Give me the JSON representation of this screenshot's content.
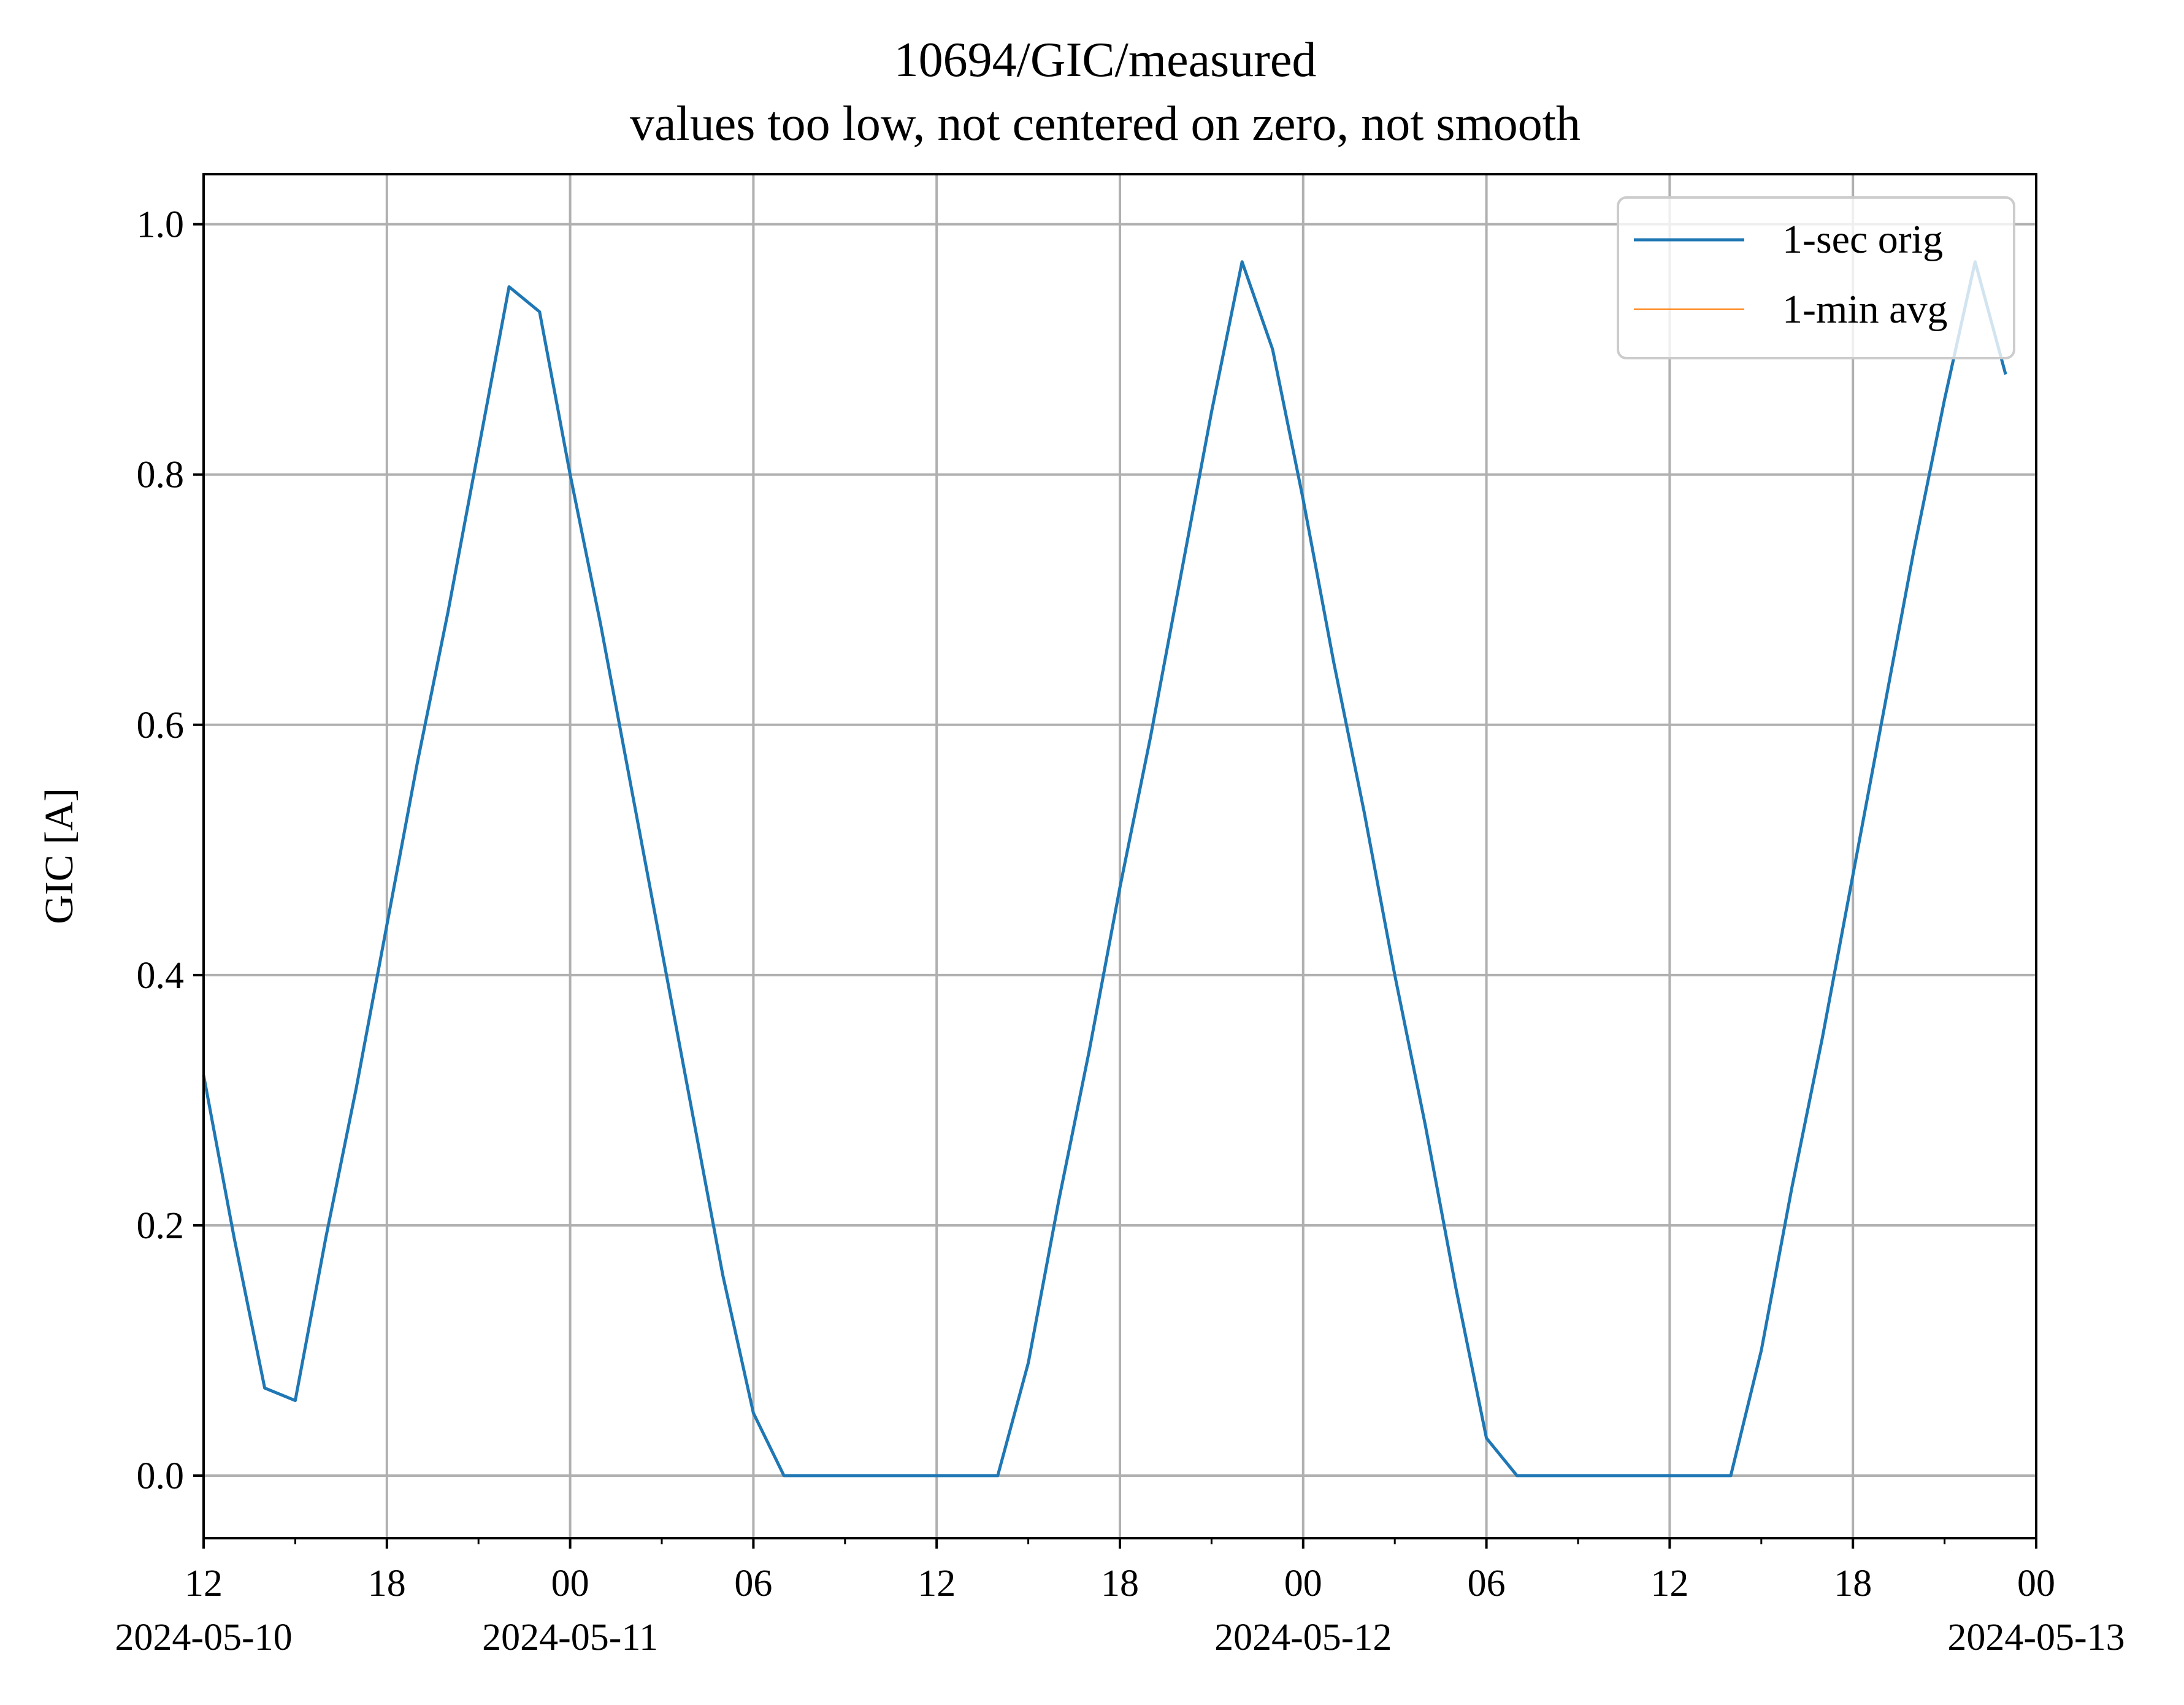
{
  "chart_data": {
    "type": "line",
    "title": "10694/GIC/measured",
    "subtitle": "values too low, not centered on zero, not smooth",
    "xlabel": "",
    "ylabel": "GIC [A]",
    "xlim": [
      "2024-05-10T12:00",
      "2024-05-13T00:00"
    ],
    "ylim": [
      -0.05,
      1.04
    ],
    "grid": true,
    "legend_position": "upper right",
    "x_ticks": [
      {
        "t": "2024-05-10T12:00",
        "label": "12",
        "date": "2024-05-10"
      },
      {
        "t": "2024-05-10T18:00",
        "label": "18",
        "date": ""
      },
      {
        "t": "2024-05-11T00:00",
        "label": "00",
        "date": "2024-05-11"
      },
      {
        "t": "2024-05-11T06:00",
        "label": "06",
        "date": ""
      },
      {
        "t": "2024-05-11T12:00",
        "label": "12",
        "date": ""
      },
      {
        "t": "2024-05-11T18:00",
        "label": "18",
        "date": ""
      },
      {
        "t": "2024-05-12T00:00",
        "label": "00",
        "date": "2024-05-12"
      },
      {
        "t": "2024-05-12T06:00",
        "label": "06",
        "date": ""
      },
      {
        "t": "2024-05-12T12:00",
        "label": "12",
        "date": ""
      },
      {
        "t": "2024-05-12T18:00",
        "label": "18",
        "date": ""
      },
      {
        "t": "2024-05-13T00:00",
        "label": "00",
        "date": "2024-05-13"
      }
    ],
    "minor_x_ticks": [
      "2024-05-10T15:00",
      "2024-05-10T21:00",
      "2024-05-11T03:00",
      "2024-05-11T09:00",
      "2024-05-11T15:00",
      "2024-05-11T21:00",
      "2024-05-12T03:00",
      "2024-05-12T09:00",
      "2024-05-12T15:00",
      "2024-05-12T21:00"
    ],
    "y_ticks": [
      {
        "v": 0.0,
        "label": "0.0"
      },
      {
        "v": 0.2,
        "label": "0.2"
      },
      {
        "v": 0.4,
        "label": "0.4"
      },
      {
        "v": 0.6,
        "label": "0.6"
      },
      {
        "v": 0.8,
        "label": "0.8"
      },
      {
        "v": 1.0,
        "label": "1.0"
      }
    ],
    "series": [
      {
        "name": "1-sec orig",
        "color": "#1f77b4",
        "x": [
          "2024-05-10T12:00",
          "2024-05-10T13:00",
          "2024-05-10T14:00",
          "2024-05-10T15:00",
          "2024-05-10T16:00",
          "2024-05-10T17:00",
          "2024-05-10T18:00",
          "2024-05-10T19:00",
          "2024-05-10T20:00",
          "2024-05-10T21:00",
          "2024-05-10T22:00",
          "2024-05-10T23:00",
          "2024-05-11T00:00",
          "2024-05-11T01:00",
          "2024-05-11T02:00",
          "2024-05-11T03:00",
          "2024-05-11T04:00",
          "2024-05-11T05:00",
          "2024-05-11T06:00",
          "2024-05-11T07:00",
          "2024-05-11T08:00",
          "2024-05-11T09:00",
          "2024-05-11T10:00",
          "2024-05-11T11:00",
          "2024-05-11T12:00",
          "2024-05-11T13:00",
          "2024-05-11T14:00",
          "2024-05-11T15:00",
          "2024-05-11T16:00",
          "2024-05-11T17:00",
          "2024-05-11T18:00",
          "2024-05-11T19:00",
          "2024-05-11T20:00",
          "2024-05-11T21:00",
          "2024-05-11T22:00",
          "2024-05-11T23:00",
          "2024-05-12T00:00",
          "2024-05-12T01:00",
          "2024-05-12T02:00",
          "2024-05-12T03:00",
          "2024-05-12T04:00",
          "2024-05-12T05:00",
          "2024-05-12T06:00",
          "2024-05-12T07:00",
          "2024-05-12T08:00",
          "2024-05-12T09:00",
          "2024-05-12T10:00",
          "2024-05-12T11:00",
          "2024-05-12T12:00",
          "2024-05-12T13:00",
          "2024-05-12T14:00",
          "2024-05-12T15:00",
          "2024-05-12T16:00",
          "2024-05-12T17:00",
          "2024-05-12T18:00",
          "2024-05-12T19:00",
          "2024-05-12T20:00",
          "2024-05-12T21:00",
          "2024-05-12T22:00",
          "2024-05-12T23:00"
        ],
        "values": [
          0.32,
          0.19,
          0.07,
          0.06,
          0.19,
          0.31,
          0.44,
          0.57,
          0.69,
          0.82,
          0.95,
          0.93,
          0.8,
          0.68,
          0.55,
          0.42,
          0.29,
          0.16,
          0.05,
          0.0,
          0.0,
          0.0,
          0.0,
          0.0,
          0.0,
          0.0,
          0.0,
          0.09,
          0.22,
          0.34,
          0.47,
          0.59,
          0.72,
          0.85,
          0.97,
          0.9,
          0.78,
          0.65,
          0.53,
          0.4,
          0.28,
          0.15,
          0.03,
          0.0,
          0.0,
          0.0,
          0.0,
          0.0,
          0.0,
          0.0,
          0.0,
          0.1,
          0.23,
          0.35,
          0.48,
          0.61,
          0.74,
          0.86,
          0.97,
          0.88
        ]
      },
      {
        "name": "1-min avg",
        "color": "#ff7f0e",
        "x": [],
        "values": []
      }
    ]
  }
}
